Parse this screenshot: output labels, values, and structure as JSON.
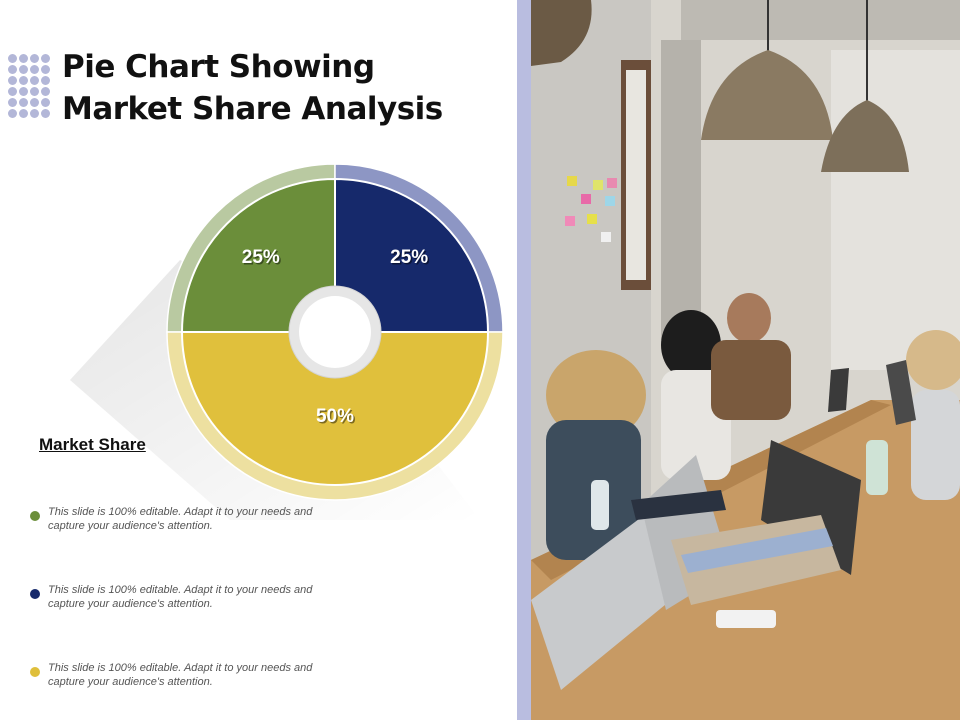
{
  "slide": {
    "title_lines": [
      "Pie Chart Showing",
      "Market Share Analysis"
    ],
    "heading": "Market Share",
    "legend": [
      {
        "text": "This slide is 100% editable. Adapt it to your needs and capture your audience's attention.",
        "color": "#6b8e3a"
      },
      {
        "text": "This slide is 100% editable. Adapt it to your needs and capture your audience's attention.",
        "color": "#16296b"
      },
      {
        "text": "This slide is 100% editable. Adapt it to your needs and capture your audience's attention.",
        "color": "#dfbf3b"
      }
    ]
  },
  "chart_data": {
    "type": "pie",
    "style": "donut",
    "slices": [
      {
        "value": 25,
        "label": "25%",
        "color": "#6b8e3a",
        "ring_color": "#b9c9a1"
      },
      {
        "value": 25,
        "label": "25%",
        "color": "#16296b",
        "ring_color": "#8d96c4"
      },
      {
        "value": 50,
        "label": "50%",
        "color": "#e0c03c",
        "ring_color": "#ede0a0"
      }
    ]
  },
  "photo": {
    "description_icon": "office-meeting-photo"
  }
}
